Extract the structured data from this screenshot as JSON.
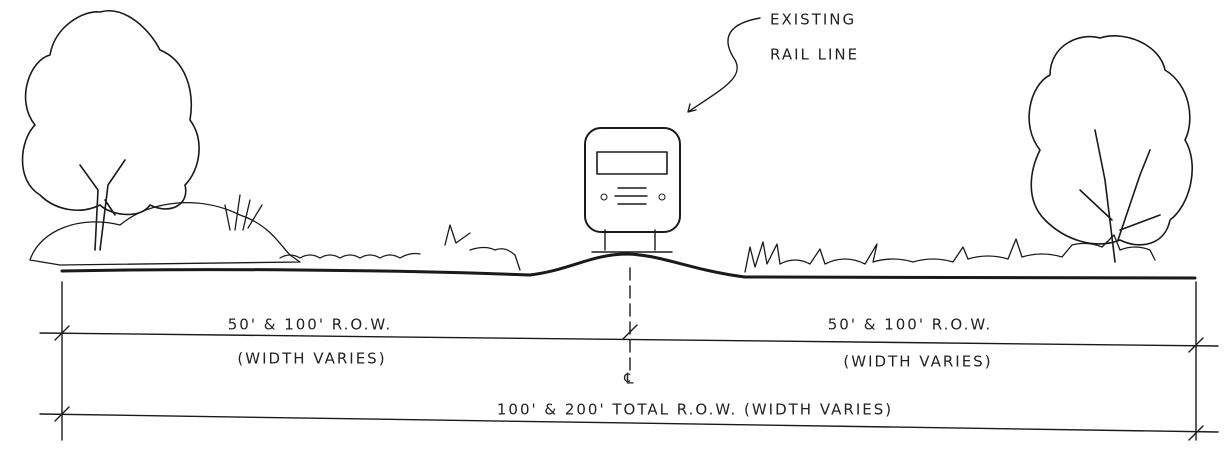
{
  "annotation": {
    "lines": [
      "EXISTING",
      "RAIL LINE"
    ]
  },
  "dimensions": [
    {
      "label": "50' & 100' R.O.W.",
      "note": "(WIDTH VARIES)"
    },
    {
      "label": "50' & 100' R.O.W.",
      "note": "(WIDTH VARIES)"
    }
  ],
  "centerline": "℄",
  "total": {
    "label": "100' & 200' TOTAL R.O.W. (WIDTH VARIES)"
  }
}
